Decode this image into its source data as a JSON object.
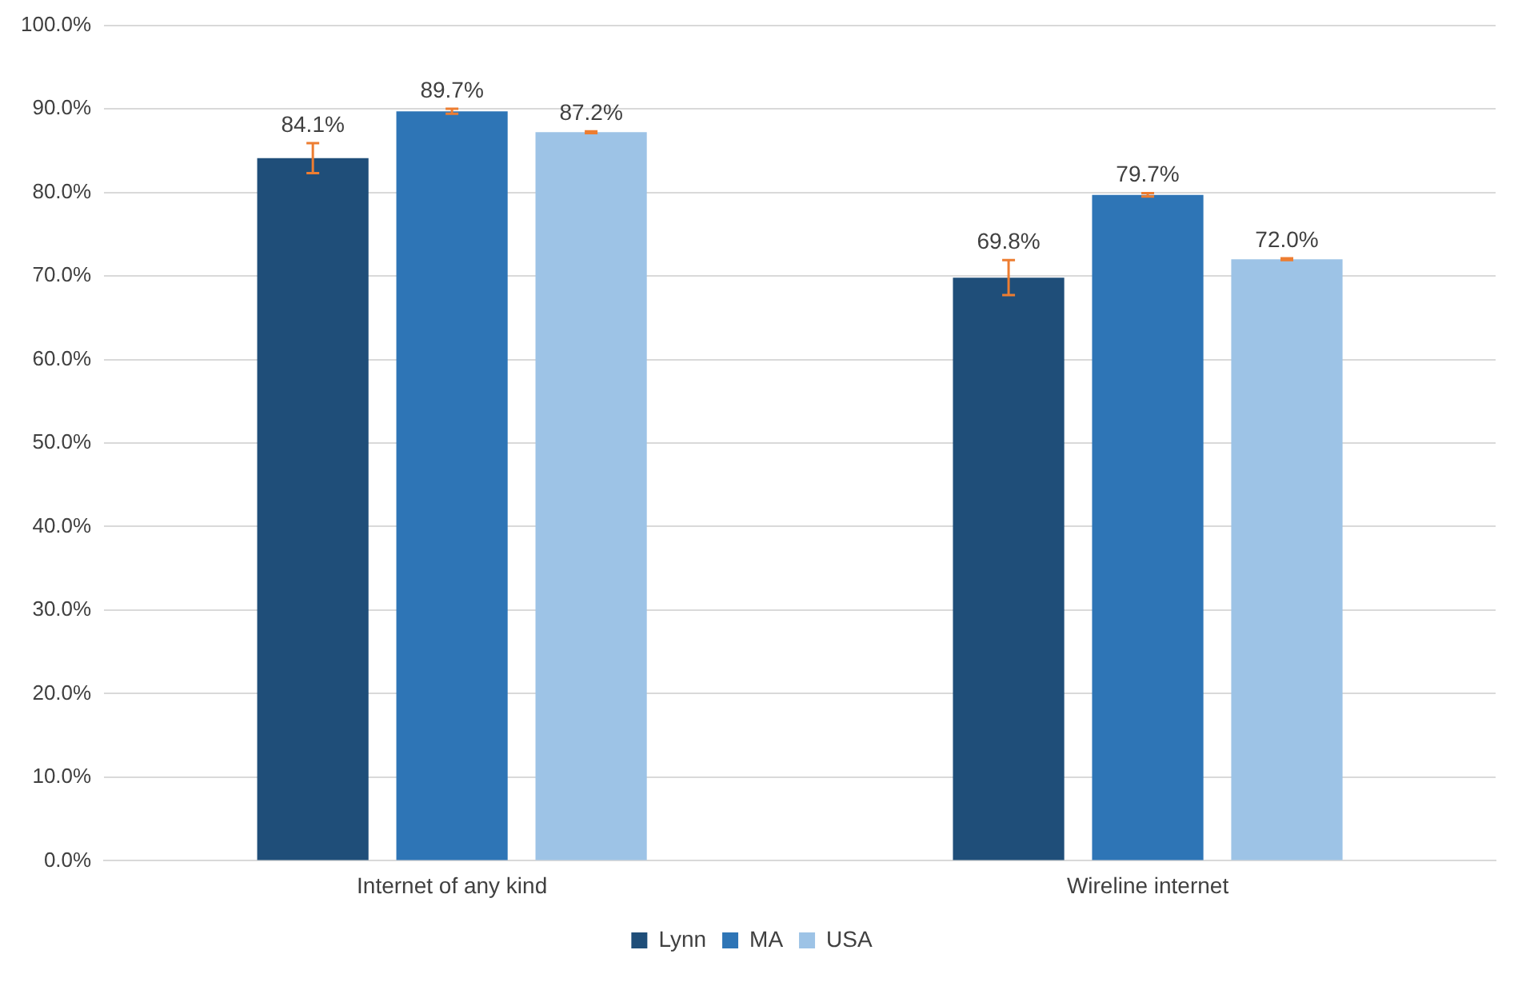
{
  "chart_data": {
    "type": "bar",
    "categories": [
      "Internet of any kind",
      "Wireline internet"
    ],
    "series": [
      {
        "name": "Lynn",
        "color": "#1f4e79",
        "values": [
          84.1,
          69.8
        ],
        "errors": [
          1.8,
          2.1
        ],
        "value_labels": [
          "84.1%",
          "69.8%"
        ]
      },
      {
        "name": "MA",
        "color": "#2e75b6",
        "values": [
          89.7,
          79.7
        ],
        "errors": [
          0.3,
          0.2
        ],
        "value_labels": [
          "89.7%",
          "79.7%"
        ]
      },
      {
        "name": "USA",
        "color": "#9dc3e6",
        "values": [
          87.2,
          72.0
        ],
        "errors": [
          0.1,
          0.1
        ],
        "value_labels": [
          "87.2%",
          "72.0%"
        ]
      }
    ],
    "ylim": [
      0,
      100
    ],
    "yticks": [
      {
        "value": 0,
        "label": "0.0%"
      },
      {
        "value": 10,
        "label": "10.0%"
      },
      {
        "value": 20,
        "label": "20.0%"
      },
      {
        "value": 30,
        "label": "30.0%"
      },
      {
        "value": 40,
        "label": "40.0%"
      },
      {
        "value": 50,
        "label": "50.0%"
      },
      {
        "value": 60,
        "label": "60.0%"
      },
      {
        "value": 70,
        "label": "70.0%"
      },
      {
        "value": 80,
        "label": "80.0%"
      },
      {
        "value": 90,
        "label": "90.0%"
      },
      {
        "value": 100,
        "label": "100.0%"
      }
    ],
    "grid": "y",
    "legend": "bottom"
  }
}
